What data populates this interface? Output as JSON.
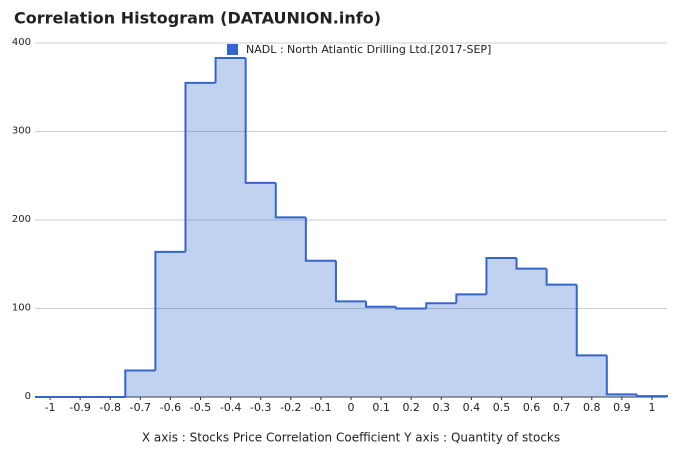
{
  "chart_data": {
    "type": "histogram",
    "title": "Correlation Histogram (DATAUNION.info)",
    "xlabel": "X axis : Stocks Price Correlation Coefficient  Y axis : Quantity of stocks",
    "series": [
      {
        "name": "NADL : North Atlantic Drilling Ltd.[2017-SEP]",
        "color": "#3366cc",
        "bins": [
          -1.05,
          -0.95,
          -0.85,
          -0.75,
          -0.65,
          -0.55,
          -0.45,
          -0.35,
          -0.25,
          -0.15,
          -0.05,
          0.05,
          0.15,
          0.25,
          0.35,
          0.45,
          0.55,
          0.65,
          0.75,
          0.85,
          0.95,
          1.05
        ],
        "values": [
          0,
          0,
          0,
          30,
          164,
          355,
          383,
          242,
          203,
          154,
          108,
          102,
          100,
          106,
          116,
          157,
          145,
          127,
          47,
          3,
          1
        ]
      }
    ],
    "xlim": [
      -1.05,
      1.05
    ],
    "xticks": [
      -1,
      -0.9,
      -0.8,
      -0.7,
      -0.6,
      -0.5,
      -0.4,
      -0.3,
      -0.2,
      -0.1,
      0,
      0.1,
      0.2,
      0.3,
      0.4,
      0.5,
      0.6,
      0.7,
      0.8,
      0.9,
      1
    ],
    "ylim": [
      0,
      400
    ],
    "yticks": [
      0,
      100,
      200,
      300,
      400
    ],
    "grid": true,
    "legend": "top"
  }
}
